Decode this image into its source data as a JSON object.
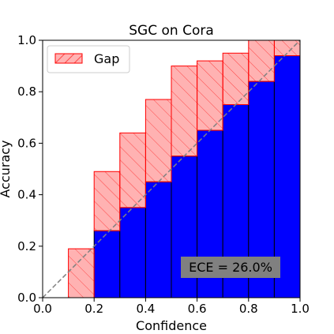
{
  "chart_data": {
    "type": "bar",
    "title": "SGC on Cora",
    "xlabel": "Confidence",
    "ylabel": "Accuracy",
    "xlim": [
      0.0,
      1.0
    ],
    "ylim": [
      0.0,
      1.0
    ],
    "xticks": [
      "0.0",
      "0.2",
      "0.4",
      "0.6",
      "0.8",
      "1.0"
    ],
    "yticks": [
      "0.0",
      "0.2",
      "0.4",
      "0.6",
      "0.8",
      "1.0"
    ],
    "bin_edges": [
      0.0,
      0.1,
      0.2,
      0.3,
      0.4,
      0.5,
      0.6,
      0.7,
      0.8,
      0.9,
      1.0
    ],
    "accuracy": [
      0.0,
      0.0,
      0.26,
      0.35,
      0.45,
      0.55,
      0.65,
      0.75,
      0.84,
      0.94
    ],
    "gap_top": [
      0.0,
      0.19,
      0.49,
      0.64,
      0.77,
      0.9,
      0.92,
      0.95,
      1.0,
      1.0
    ],
    "legend": {
      "label": "Gap",
      "position": "upper-left"
    },
    "annotation": "ECE = 26.0%",
    "grid": false,
    "colors": {
      "accuracy_fill": "#0000ff",
      "gap_fill": "#ff0000",
      "gap_edge": "#ff0000",
      "diagonal": "#808080",
      "annotation_box": "#808080"
    }
  }
}
